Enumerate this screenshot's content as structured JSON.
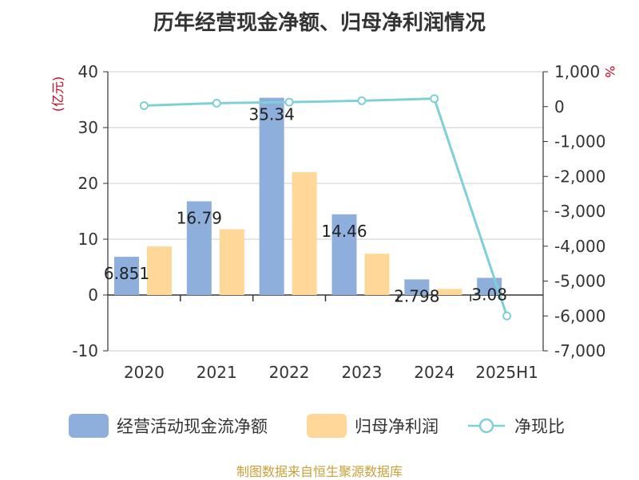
{
  "chart_data": {
    "type": "bar",
    "title": "历年经营现金净额、归母净利润情况",
    "categories": [
      "2020",
      "2021",
      "2022",
      "2023",
      "2024",
      "2025H1"
    ],
    "left_axis": {
      "unit": "(亿元)",
      "ticks": [
        "40",
        "30",
        "20",
        "10",
        "0",
        "-10"
      ],
      "ylim": [
        -10,
        40
      ]
    },
    "right_axis": {
      "unit": "%",
      "ticks": [
        "1,000",
        "0",
        "-1,000",
        "-2,000",
        "-3,000",
        "-4,000",
        "-5,000",
        "-6,000",
        "-7,000"
      ],
      "ylim": [
        -7000,
        1000
      ]
    },
    "series": [
      {
        "name": "经营活动现金流净额",
        "type": "bar",
        "axis": "left",
        "color": "#8eaedb",
        "values": [
          6.851,
          16.79,
          35.34,
          14.46,
          2.798,
          3.08
        ],
        "labels": [
          "6.851",
          "16.79",
          "35.34",
          "14.46",
          "2.798",
          "3.08"
        ]
      },
      {
        "name": "归母净利润",
        "type": "bar",
        "axis": "left",
        "color": "#ffd899",
        "values": [
          8.7,
          11.8,
          22.0,
          7.4,
          1.1,
          null
        ]
      },
      {
        "name": "净现比",
        "type": "line",
        "axis": "right",
        "color": "#7fd0d6",
        "values": [
          30,
          100,
          130,
          170,
          230,
          -6000
        ]
      }
    ],
    "grid": true,
    "legend": "bottom"
  },
  "source_text": "制图数据来自恒生聚源数据库"
}
